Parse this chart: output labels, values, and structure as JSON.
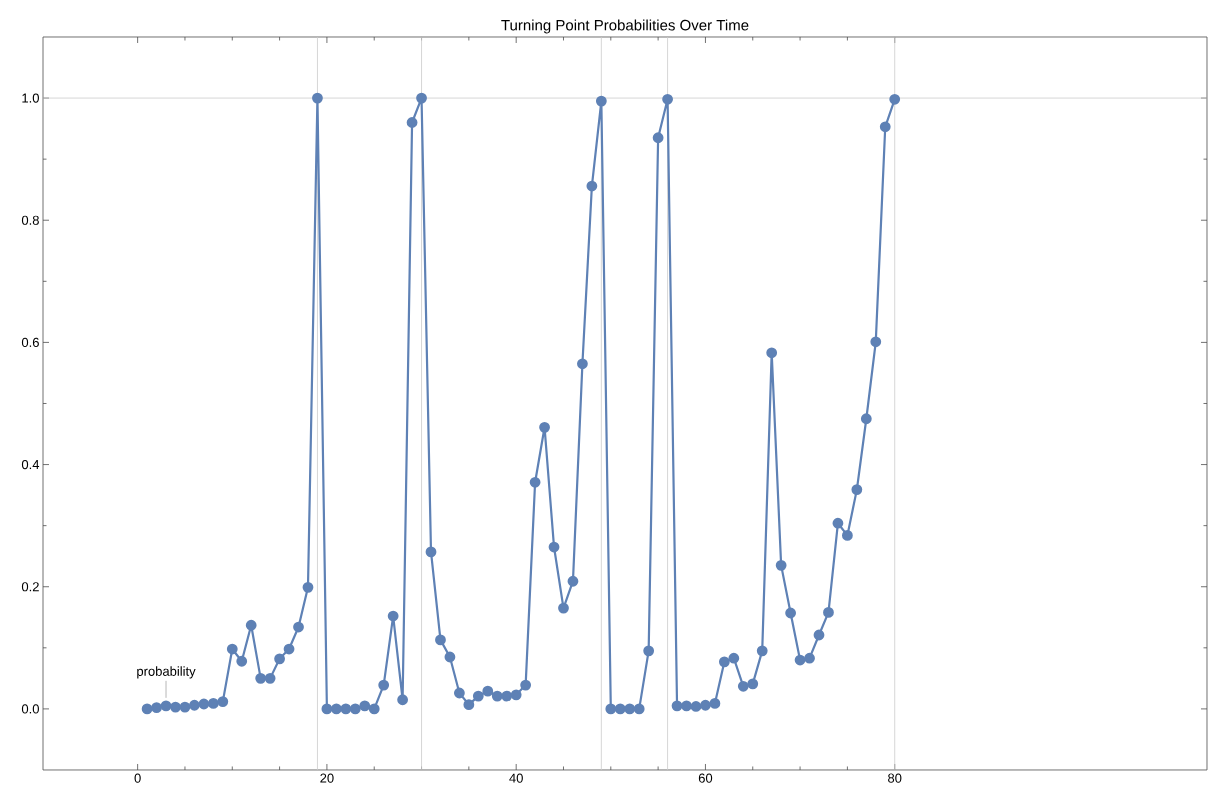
{
  "chart_data": {
    "type": "line",
    "title": "Turning Point Probabilities Over Time",
    "x": [
      1,
      2,
      3,
      4,
      5,
      6,
      7,
      8,
      9,
      10,
      11,
      12,
      13,
      14,
      15,
      16,
      17,
      18,
      19,
      20,
      21,
      22,
      23,
      24,
      25,
      26,
      27,
      28,
      29,
      30,
      31,
      32,
      33,
      34,
      35,
      36,
      37,
      38,
      39,
      40,
      41,
      42,
      43,
      44,
      45,
      46,
      47,
      48,
      49,
      50,
      51,
      52,
      53,
      54,
      55,
      56,
      57,
      58,
      59,
      60,
      61,
      62,
      63,
      64,
      65,
      66,
      67,
      68,
      69,
      70,
      71,
      72,
      73,
      74,
      75,
      76,
      77,
      78,
      79,
      80
    ],
    "series": [
      {
        "name": "probability",
        "color": "#5e81b5",
        "values": [
          0.0,
          0.002,
          0.005,
          0.003,
          0.003,
          0.006,
          0.008,
          0.009,
          0.012,
          0.098,
          0.078,
          0.137,
          0.05,
          0.05,
          0.082,
          0.098,
          0.134,
          0.199,
          1.0,
          0.0,
          0.0,
          0.0,
          0.0,
          0.005,
          0.0,
          0.039,
          0.152,
          0.015,
          0.96,
          1.0,
          0.257,
          0.113,
          0.085,
          0.026,
          0.007,
          0.021,
          0.029,
          0.021,
          0.021,
          0.023,
          0.039,
          0.371,
          0.461,
          0.265,
          0.165,
          0.209,
          0.565,
          0.856,
          0.995,
          0.0,
          0.0,
          0.0,
          0.0,
          0.095,
          0.935,
          0.998,
          0.005,
          0.005,
          0.004,
          0.006,
          0.009,
          0.077,
          0.083,
          0.037,
          0.041,
          0.095,
          0.583,
          0.235,
          0.157,
          0.08,
          0.083,
          0.121,
          0.158,
          0.304,
          0.284,
          0.359,
          0.475,
          0.601,
          0.953,
          0.998
        ]
      }
    ],
    "xlim": [
      -10,
      113
    ],
    "ylim": [
      -0.1,
      1.1
    ],
    "xticks": [
      0,
      20,
      40,
      60,
      80
    ],
    "yticks": [
      {
        "value": 0,
        "label": "0.0"
      },
      {
        "value": 0.2,
        "label": "0.2"
      },
      {
        "value": 0.4,
        "label": "0.4"
      },
      {
        "value": 0.6,
        "label": "0.6"
      },
      {
        "value": 0.8,
        "label": "0.8"
      },
      {
        "value": 1.0,
        "label": "1.0"
      }
    ],
    "ref_lines": [
      {
        "axis": "x",
        "value": 19,
        "color": "#cccccc"
      },
      {
        "axis": "x",
        "value": 30,
        "color": "#cccccc"
      },
      {
        "axis": "x",
        "value": 49,
        "color": "#cccccc"
      },
      {
        "axis": "x",
        "value": 56,
        "color": "#cccccc"
      },
      {
        "axis": "x",
        "value": 80,
        "color": "#cccccc"
      },
      {
        "axis": "y",
        "value": 1.0,
        "color": "#cccccc"
      }
    ],
    "grid": false,
    "legend": false,
    "marker": "circle",
    "line_style": "solid"
  }
}
